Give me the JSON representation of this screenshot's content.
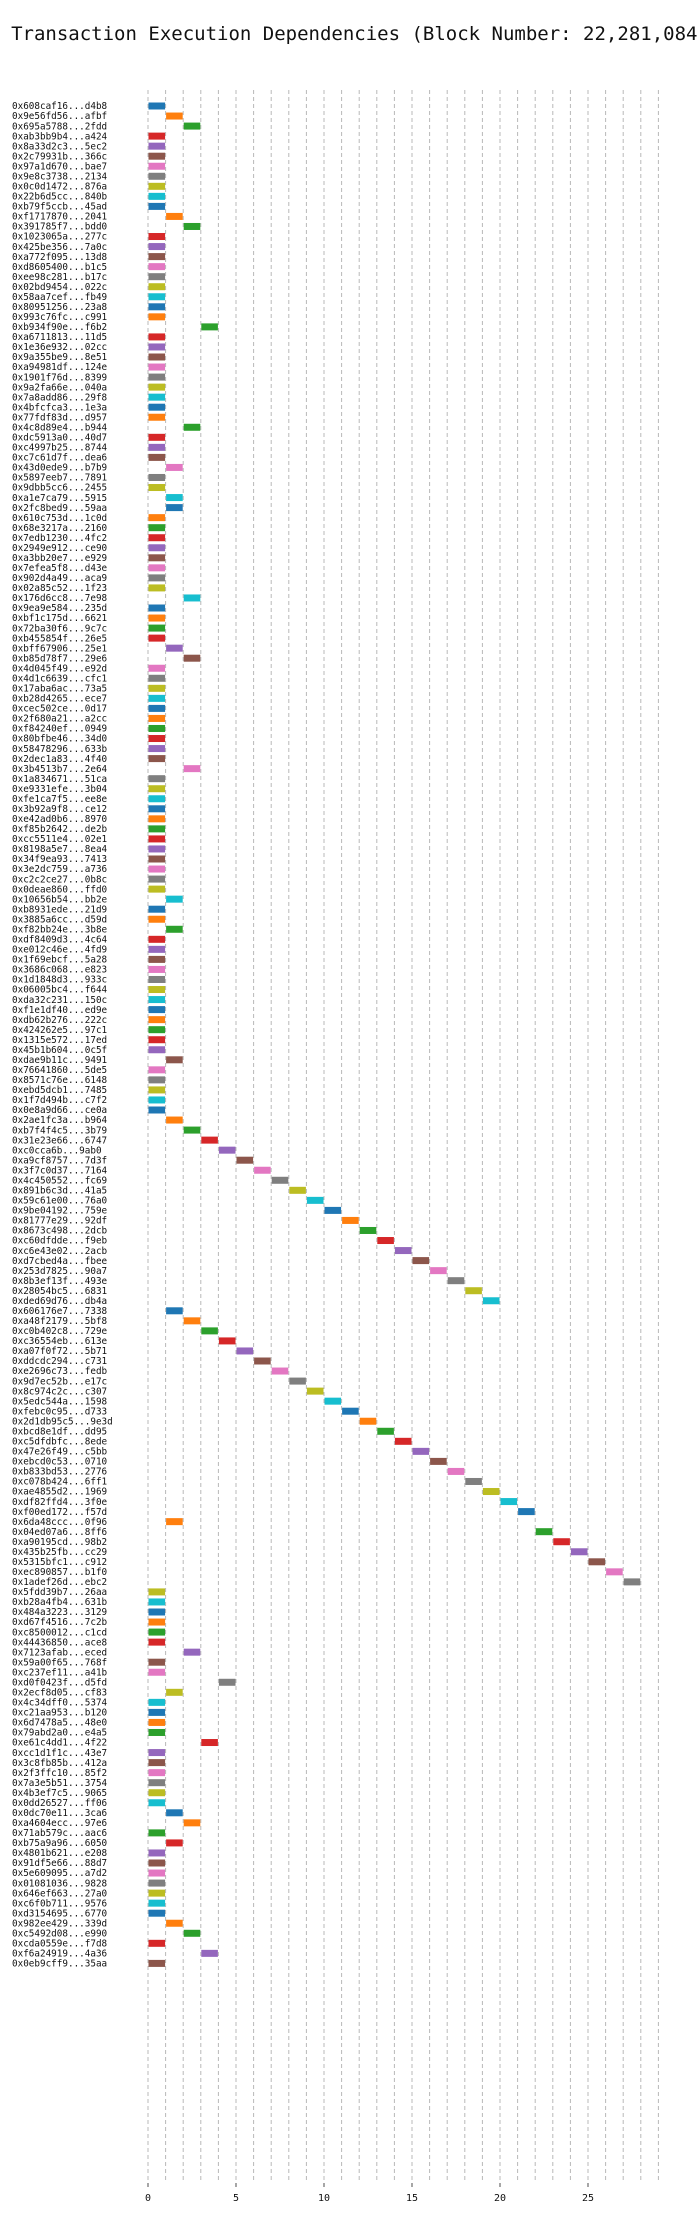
{
  "chart_data": {
    "type": "bar",
    "orientation": "horizontal",
    "title": "Transaction Execution Dependencies (Block Number: 22,281,084)",
    "xlabel": "",
    "ylabel": "",
    "xlim": [
      -1,
      30
    ],
    "xticks": [
      0,
      5,
      10,
      15,
      20,
      25
    ],
    "grid": "x",
    "colors": [
      "#1f77b4",
      "#ff7f0e",
      "#2ca02c",
      "#d62728",
      "#9467bd",
      "#8c564b",
      "#e377c2",
      "#7f7f7f",
      "#bcbd22",
      "#17becf"
    ],
    "transactions": [
      {
        "id": "0x608caf16...d4b8",
        "start": 0,
        "end": 1
      },
      {
        "id": "0x9e56fd56...afbf",
        "start": 1,
        "end": 2
      },
      {
        "id": "0x695a5788...2fdd",
        "start": 2,
        "end": 3
      },
      {
        "id": "0xab3bb9b4...a424",
        "start": 0,
        "end": 1
      },
      {
        "id": "0x8a33d2c3...5ec2",
        "start": 0,
        "end": 1
      },
      {
        "id": "0x2c79931b...366c",
        "start": 0,
        "end": 1
      },
      {
        "id": "0x97a1d670...bae7",
        "start": 0,
        "end": 1
      },
      {
        "id": "0x9e8c3738...2134",
        "start": 0,
        "end": 1
      },
      {
        "id": "0x0c0d1472...876a",
        "start": 0,
        "end": 1
      },
      {
        "id": "0x22b6d5cc...840b",
        "start": 0,
        "end": 1
      },
      {
        "id": "0xb79f5ccb...45ad",
        "start": 0,
        "end": 1
      },
      {
        "id": "0xf1717870...2041",
        "start": 1,
        "end": 2
      },
      {
        "id": "0x391785f7...bdd0",
        "start": 2,
        "end": 3
      },
      {
        "id": "0x1023065a...277c",
        "start": 0,
        "end": 1
      },
      {
        "id": "0x425be356...7a0c",
        "start": 0,
        "end": 1
      },
      {
        "id": "0xa772f095...13d8",
        "start": 0,
        "end": 1
      },
      {
        "id": "0xd8605400...b1c5",
        "start": 0,
        "end": 1
      },
      {
        "id": "0xee98c281...b17c",
        "start": 0,
        "end": 1
      },
      {
        "id": "0x02bd9454...022c",
        "start": 0,
        "end": 1
      },
      {
        "id": "0x58aa7cef...fb49",
        "start": 0,
        "end": 1
      },
      {
        "id": "0x80951256...23a8",
        "start": 0,
        "end": 1
      },
      {
        "id": "0x993c76fc...c991",
        "start": 0,
        "end": 1
      },
      {
        "id": "0xb934f90e...f6b2",
        "start": 3,
        "end": 4
      },
      {
        "id": "0xa6711813...11d5",
        "start": 0,
        "end": 1
      },
      {
        "id": "0x1e36e932...02cc",
        "start": 0,
        "end": 1
      },
      {
        "id": "0x9a355be9...8e51",
        "start": 0,
        "end": 1
      },
      {
        "id": "0xa94981df...124e",
        "start": 0,
        "end": 1
      },
      {
        "id": "0x1901f76d...8399",
        "start": 0,
        "end": 1
      },
      {
        "id": "0x9a2fa66e...040a",
        "start": 0,
        "end": 1
      },
      {
        "id": "0x7a8add86...29f8",
        "start": 0,
        "end": 1
      },
      {
        "id": "0x4bfcfca3...1e3a",
        "start": 0,
        "end": 1
      },
      {
        "id": "0x77fdf83d...d957",
        "start": 0,
        "end": 1
      },
      {
        "id": "0x4c8d89e4...b944",
        "start": 2,
        "end": 3
      },
      {
        "id": "0xdc5913a0...40d7",
        "start": 0,
        "end": 1
      },
      {
        "id": "0xc4997b25...8744",
        "start": 0,
        "end": 1
      },
      {
        "id": "0xc7c61d7f...dea6",
        "start": 0,
        "end": 1
      },
      {
        "id": "0x43d0ede9...b7b9",
        "start": 1,
        "end": 2
      },
      {
        "id": "0x5897eeb7...7891",
        "start": 0,
        "end": 1
      },
      {
        "id": "0x9dbb5cc6...2455",
        "start": 0,
        "end": 1
      },
      {
        "id": "0xa1e7ca79...5915",
        "start": 1,
        "end": 2
      },
      {
        "id": "0x2fc8bed9...59aa",
        "start": 1,
        "end": 2
      },
      {
        "id": "0x610c753d...1c0d",
        "start": 0,
        "end": 1
      },
      {
        "id": "0x68e3217a...2160",
        "start": 0,
        "end": 1
      },
      {
        "id": "0x7edb1230...4fc2",
        "start": 0,
        "end": 1
      },
      {
        "id": "0x2949e912...ce90",
        "start": 0,
        "end": 1
      },
      {
        "id": "0xa3bb20e7...e929",
        "start": 0,
        "end": 1
      },
      {
        "id": "0x7efea5f8...d43e",
        "start": 0,
        "end": 1
      },
      {
        "id": "0x902d4a49...aca9",
        "start": 0,
        "end": 1
      },
      {
        "id": "0x02a85c52...1f23",
        "start": 0,
        "end": 1
      },
      {
        "id": "0x176d6cc8...7e98",
        "start": 2,
        "end": 3
      },
      {
        "id": "0x9ea9e584...235d",
        "start": 0,
        "end": 1
      },
      {
        "id": "0xbf1c175d...6621",
        "start": 0,
        "end": 1
      },
      {
        "id": "0x72ba30f6...9c7c",
        "start": 0,
        "end": 1
      },
      {
        "id": "0xb455854f...26e5",
        "start": 0,
        "end": 1
      },
      {
        "id": "0xbff67906...25e1",
        "start": 1,
        "end": 2
      },
      {
        "id": "0xb85d78f7...29e6",
        "start": 2,
        "end": 3
      },
      {
        "id": "0x4d045f49...e92d",
        "start": 0,
        "end": 1
      },
      {
        "id": "0x4d1c6639...cfc1",
        "start": 0,
        "end": 1
      },
      {
        "id": "0x17aba6ac...73a5",
        "start": 0,
        "end": 1
      },
      {
        "id": "0xb28d4265...ece7",
        "start": 0,
        "end": 1
      },
      {
        "id": "0xcec502ce...0d17",
        "start": 0,
        "end": 1
      },
      {
        "id": "0x2f680a21...a2cc",
        "start": 0,
        "end": 1
      },
      {
        "id": "0xf84240ef...0949",
        "start": 0,
        "end": 1
      },
      {
        "id": "0x80bfbe46...34d0",
        "start": 0,
        "end": 1
      },
      {
        "id": "0x58478296...633b",
        "start": 0,
        "end": 1
      },
      {
        "id": "0x2dec1a83...4f40",
        "start": 0,
        "end": 1
      },
      {
        "id": "0x3b4513b7...2e64",
        "start": 2,
        "end": 3
      },
      {
        "id": "0x1a834671...51ca",
        "start": 0,
        "end": 1
      },
      {
        "id": "0xe9331efe...3b04",
        "start": 0,
        "end": 1
      },
      {
        "id": "0xfe1ca7f5...ee8e",
        "start": 0,
        "end": 1
      },
      {
        "id": "0x3b92a9f8...ce12",
        "start": 0,
        "end": 1
      },
      {
        "id": "0xe42ad0b6...8970",
        "start": 0,
        "end": 1
      },
      {
        "id": "0xf85b2642...de2b",
        "start": 0,
        "end": 1
      },
      {
        "id": "0xcc5511e4...02e1",
        "start": 0,
        "end": 1
      },
      {
        "id": "0x8198a5e7...8ea4",
        "start": 0,
        "end": 1
      },
      {
        "id": "0x34f9ea93...7413",
        "start": 0,
        "end": 1
      },
      {
        "id": "0x3e2dc759...a736",
        "start": 0,
        "end": 1
      },
      {
        "id": "0xc2c2ce27...0b8c",
        "start": 0,
        "end": 1
      },
      {
        "id": "0x0deae860...ffd0",
        "start": 0,
        "end": 1
      },
      {
        "id": "0x10656b54...bb2e",
        "start": 1,
        "end": 2
      },
      {
        "id": "0xb8931ede...21d9",
        "start": 0,
        "end": 1
      },
      {
        "id": "0x3885a6cc...d59d",
        "start": 0,
        "end": 1
      },
      {
        "id": "0xf82bb24e...3b8e",
        "start": 1,
        "end": 2
      },
      {
        "id": "0xdf8409d3...4c64",
        "start": 0,
        "end": 1
      },
      {
        "id": "0xe012c46e...4fd9",
        "start": 0,
        "end": 1
      },
      {
        "id": "0x1f69ebcf...5a28",
        "start": 0,
        "end": 1
      },
      {
        "id": "0x3686c068...e823",
        "start": 0,
        "end": 1
      },
      {
        "id": "0x1d1848d3...933c",
        "start": 0,
        "end": 1
      },
      {
        "id": "0x06005bc4...f644",
        "start": 0,
        "end": 1
      },
      {
        "id": "0xda32c231...150c",
        "start": 0,
        "end": 1
      },
      {
        "id": "0xf1e1df40...ed9e",
        "start": 0,
        "end": 1
      },
      {
        "id": "0xdb62b276...222c",
        "start": 0,
        "end": 1
      },
      {
        "id": "0x424262e5...97c1",
        "start": 0,
        "end": 1
      },
      {
        "id": "0x1315e572...17ed",
        "start": 0,
        "end": 1
      },
      {
        "id": "0x45b1b604...0c5f",
        "start": 0,
        "end": 1
      },
      {
        "id": "0xdae9b11c...9491",
        "start": 1,
        "end": 2
      },
      {
        "id": "0x76641860...5de5",
        "start": 0,
        "end": 1
      },
      {
        "id": "0x8571c76e...6148",
        "start": 0,
        "end": 1
      },
      {
        "id": "0xebd5dcb1...7485",
        "start": 0,
        "end": 1
      },
      {
        "id": "0x1f7d494b...c7f2",
        "start": 0,
        "end": 1
      },
      {
        "id": "0x0e8a9d66...ce0a",
        "start": 0,
        "end": 1
      },
      {
        "id": "0x2ae1fc3a...b964",
        "start": 1,
        "end": 2
      },
      {
        "id": "0xb7f4f4c5...3b79",
        "start": 2,
        "end": 3
      },
      {
        "id": "0x31e23e66...6747",
        "start": 3,
        "end": 4
      },
      {
        "id": "0xc0cca6b...9ab0",
        "start": 4,
        "end": 5
      },
      {
        "id": "0xa9cf8757...7d3f",
        "start": 5,
        "end": 6
      },
      {
        "id": "0x3f7c0d37...7164",
        "start": 6,
        "end": 7
      },
      {
        "id": "0x4c450552...fc69",
        "start": 7,
        "end": 8
      },
      {
        "id": "0x891b6c3d...41a5",
        "start": 8,
        "end": 9
      },
      {
        "id": "0x59c61e00...76a0",
        "start": 9,
        "end": 10
      },
      {
        "id": "0x9be04192...759e",
        "start": 10,
        "end": 11
      },
      {
        "id": "0x81777e29...92df",
        "start": 11,
        "end": 12
      },
      {
        "id": "0x8673c498...2dcb",
        "start": 12,
        "end": 13
      },
      {
        "id": "0xc60dfdde...f9eb",
        "start": 13,
        "end": 14
      },
      {
        "id": "0xc6e43e02...2acb",
        "start": 14,
        "end": 15
      },
      {
        "id": "0xd7cbed4a...fbee",
        "start": 15,
        "end": 16
      },
      {
        "id": "0x253d7825...90a7",
        "start": 16,
        "end": 17
      },
      {
        "id": "0x8b3ef13f...493e",
        "start": 17,
        "end": 18
      },
      {
        "id": "0x28054bc5...6831",
        "start": 18,
        "end": 19
      },
      {
        "id": "0xded69d76...db4a",
        "start": 19,
        "end": 20
      },
      {
        "id": "0x606176e7...7338",
        "start": 1,
        "end": 2
      },
      {
        "id": "0xa48f2179...5bf8",
        "start": 2,
        "end": 3
      },
      {
        "id": "0xc0b402c8...729e",
        "start": 3,
        "end": 4
      },
      {
        "id": "0xc36554eb...613e",
        "start": 4,
        "end": 5
      },
      {
        "id": "0xa07f0f72...5b71",
        "start": 5,
        "end": 6
      },
      {
        "id": "0xddcdc294...c731",
        "start": 6,
        "end": 7
      },
      {
        "id": "0xe2696c73...fedb",
        "start": 7,
        "end": 8
      },
      {
        "id": "0x9d7ec52b...e17c",
        "start": 8,
        "end": 9
      },
      {
        "id": "0x8c974c2c...c307",
        "start": 9,
        "end": 10
      },
      {
        "id": "0x5edc544a...1598",
        "start": 10,
        "end": 11
      },
      {
        "id": "0xfebc0c95...d733",
        "start": 11,
        "end": 12
      },
      {
        "id": "0x2d1db95c5...9e3d",
        "start": 12,
        "end": 13
      },
      {
        "id": "0xbcd8e1df...dd95",
        "start": 13,
        "end": 14
      },
      {
        "id": "0xc5dfdbfc...8ede",
        "start": 14,
        "end": 15
      },
      {
        "id": "0x47e26f49...c5bb",
        "start": 15,
        "end": 16
      },
      {
        "id": "0xebcd0c53...0710",
        "start": 16,
        "end": 17
      },
      {
        "id": "0xb833bd53...2776",
        "start": 17,
        "end": 18
      },
      {
        "id": "0xc078b424...6ff1",
        "start": 18,
        "end": 19
      },
      {
        "id": "0xae4855d2...1969",
        "start": 19,
        "end": 20
      },
      {
        "id": "0xdf82ffd4...3f0e",
        "start": 20,
        "end": 21
      },
      {
        "id": "0xf00ed172...f57d",
        "start": 21,
        "end": 22
      },
      {
        "id": "0x6da48ccc...0f96",
        "start": 1,
        "end": 2
      },
      {
        "id": "0x04ed07a6...8ff6",
        "start": 22,
        "end": 23
      },
      {
        "id": "0xa90195cd...98b2",
        "start": 23,
        "end": 24
      },
      {
        "id": "0x435b25fb...cc29",
        "start": 24,
        "end": 25
      },
      {
        "id": "0x5315bfc1...c912",
        "start": 25,
        "end": 26
      },
      {
        "id": "0xec890857...b1f0",
        "start": 26,
        "end": 27
      },
      {
        "id": "0x1adef26d...ebc2",
        "start": 27,
        "end": 28
      },
      {
        "id": "0x5fdd39b7...26aa",
        "start": 0,
        "end": 1
      },
      {
        "id": "0xb28a4fb4...631b",
        "start": 0,
        "end": 1
      },
      {
        "id": "0x484a3223...3129",
        "start": 0,
        "end": 1
      },
      {
        "id": "0xd67f4516...7c2b",
        "start": 0,
        "end": 1
      },
      {
        "id": "0xc8500012...c1cd",
        "start": 0,
        "end": 1
      },
      {
        "id": "0x44436850...ace8",
        "start": 0,
        "end": 1
      },
      {
        "id": "0x7123afab...eced",
        "start": 2,
        "end": 3
      },
      {
        "id": "0x59a00f65...768f",
        "start": 0,
        "end": 1
      },
      {
        "id": "0xc237ef11...a41b",
        "start": 0,
        "end": 1
      },
      {
        "id": "0xd0f0423f...d5fd",
        "start": 4,
        "end": 5
      },
      {
        "id": "0x2ecf8d05...cf83",
        "start": 1,
        "end": 2
      },
      {
        "id": "0x4c34dff0...5374",
        "start": 0,
        "end": 1
      },
      {
        "id": "0xc21aa953...b120",
        "start": 0,
        "end": 1
      },
      {
        "id": "0x6d7478a5...48e0",
        "start": 0,
        "end": 1
      },
      {
        "id": "0x79abd2a0...e4a5",
        "start": 0,
        "end": 1
      },
      {
        "id": "0xe61c4dd1...4f22",
        "start": 3,
        "end": 4
      },
      {
        "id": "0xcc1d1f1c...43e7",
        "start": 0,
        "end": 1
      },
      {
        "id": "0x3c8fb85b...412a",
        "start": 0,
        "end": 1
      },
      {
        "id": "0x2f3ffc10...85f2",
        "start": 0,
        "end": 1
      },
      {
        "id": "0x7a3e5b51...3754",
        "start": 0,
        "end": 1
      },
      {
        "id": "0x4b3ef7c5...9065",
        "start": 0,
        "end": 1
      },
      {
        "id": "0x0dd26527...ff06",
        "start": 0,
        "end": 1
      },
      {
        "id": "0x0dc70e11...3ca6",
        "start": 1,
        "end": 2
      },
      {
        "id": "0xa4604ecc...97e6",
        "start": 2,
        "end": 3
      },
      {
        "id": "0x71ab579c...aac6",
        "start": 0,
        "end": 1
      },
      {
        "id": "0xb75a9a96...6050",
        "start": 1,
        "end": 2
      },
      {
        "id": "0x4801b621...e208",
        "start": 0,
        "end": 1
      },
      {
        "id": "0x91df5e66...88d7",
        "start": 0,
        "end": 1
      },
      {
        "id": "0x5e609095...a7d2",
        "start": 0,
        "end": 1
      },
      {
        "id": "0x01081036...9828",
        "start": 0,
        "end": 1
      },
      {
        "id": "0x646ef663...27a0",
        "start": 0,
        "end": 1
      },
      {
        "id": "0xc6f0b711...9576",
        "start": 0,
        "end": 1
      },
      {
        "id": "0xd3154695...6770",
        "start": 0,
        "end": 1
      },
      {
        "id": "0x982ee429...339d",
        "start": 1,
        "end": 2
      },
      {
        "id": "0xc5492d08...e990",
        "start": 2,
        "end": 3
      },
      {
        "id": "0xcda0559e...f7d8",
        "start": 0,
        "end": 1
      },
      {
        "id": "0xf6a24919...4a36",
        "start": 3,
        "end": 4
      },
      {
        "id": "0x0eb9cff9...35aa",
        "start": 0,
        "end": 1
      }
    ]
  }
}
